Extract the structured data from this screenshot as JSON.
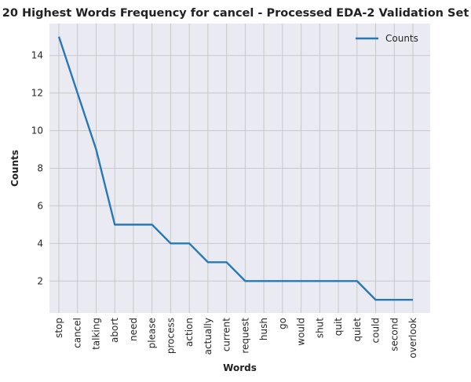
{
  "chart_data": {
    "type": "line",
    "title": "20 Highest Words Frequency for cancel - Processed EDA-2 Validation Set",
    "xlabel": "Words",
    "ylabel": "Counts",
    "categories": [
      "stop",
      "cancel",
      "talking",
      "abort",
      "need",
      "please",
      "process",
      "action",
      "actually",
      "current",
      "request",
      "hush",
      "go",
      "would",
      "shut",
      "quit",
      "quiet",
      "could",
      "second",
      "overlook"
    ],
    "series": [
      {
        "name": "Counts",
        "values": [
          15,
          12,
          9,
          5,
          5,
          5,
          4,
          4,
          3,
          3,
          2,
          2,
          2,
          2,
          2,
          2,
          2,
          1,
          1,
          1
        ],
        "color": "#2878b5"
      }
    ],
    "ylim": [
      0.3,
      15.7
    ],
    "yticks": [
      2,
      4,
      6,
      8,
      10,
      12,
      14
    ],
    "grid": true,
    "legend_position": "top-right",
    "plot_background": "#eaeaf2",
    "grid_color": "#c8c8c8"
  }
}
